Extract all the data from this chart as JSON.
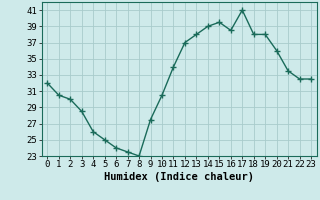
{
  "x": [
    0,
    1,
    2,
    3,
    4,
    5,
    6,
    7,
    8,
    9,
    10,
    11,
    12,
    13,
    14,
    15,
    16,
    17,
    18,
    19,
    20,
    21,
    22,
    23
  ],
  "y": [
    32,
    30.5,
    30,
    28.5,
    26,
    25,
    24,
    23.5,
    23,
    27.5,
    30.5,
    34,
    37,
    38,
    39,
    39.5,
    38.5,
    41,
    38,
    38,
    36,
    33.5,
    32.5,
    32.5
  ],
  "line_color": "#1a6b5a",
  "marker": "+",
  "marker_size": 4,
  "marker_lw": 1.0,
  "line_width": 1.0,
  "bg_color": "#ceeaea",
  "grid_color": "#a8cccc",
  "xlabel": "Humidex (Indice chaleur)",
  "xlabel_fontsize": 7.5,
  "ylim": [
    23,
    42
  ],
  "yticks": [
    23,
    25,
    27,
    29,
    31,
    33,
    35,
    37,
    39,
    41
  ],
  "xticks": [
    0,
    1,
    2,
    3,
    4,
    5,
    6,
    7,
    8,
    9,
    10,
    11,
    12,
    13,
    14,
    15,
    16,
    17,
    18,
    19,
    20,
    21,
    22,
    23
  ],
  "tick_fontsize": 6.5
}
